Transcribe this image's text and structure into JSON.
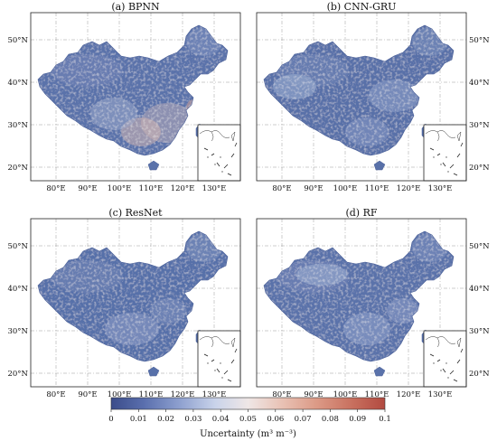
{
  "figure": {
    "panels": [
      {
        "title": "(a) BPNN",
        "variant": "bpnn"
      },
      {
        "title": "(b) CNN-GRU",
        "variant": "cnngru"
      },
      {
        "title": "(c) ResNet",
        "variant": "resnet"
      },
      {
        "title": "(d) RF",
        "variant": "rf"
      }
    ],
    "lat_ticks": [
      "50°N",
      "40°N",
      "30°N",
      "20°N"
    ],
    "lon_ticks": [
      "80°E",
      "90°E",
      "100°E",
      "110°E",
      "120°E",
      "130°E"
    ],
    "colorbar": {
      "ticks": [
        "0",
        "0.01",
        "0.02",
        "0.03",
        "0.04",
        "0.05",
        "0.06",
        "0.07",
        "0.08",
        "0.09",
        "0.1"
      ],
      "title": "Uncertainty (m³ m⁻³)",
      "colors": [
        "#3b4c8a",
        "#5a6fae",
        "#8ea0cf",
        "#c9d3ea",
        "#efe7e6",
        "#e9c3b6",
        "#dc9a86",
        "#c8705f",
        "#b24a40"
      ]
    }
  }
}
